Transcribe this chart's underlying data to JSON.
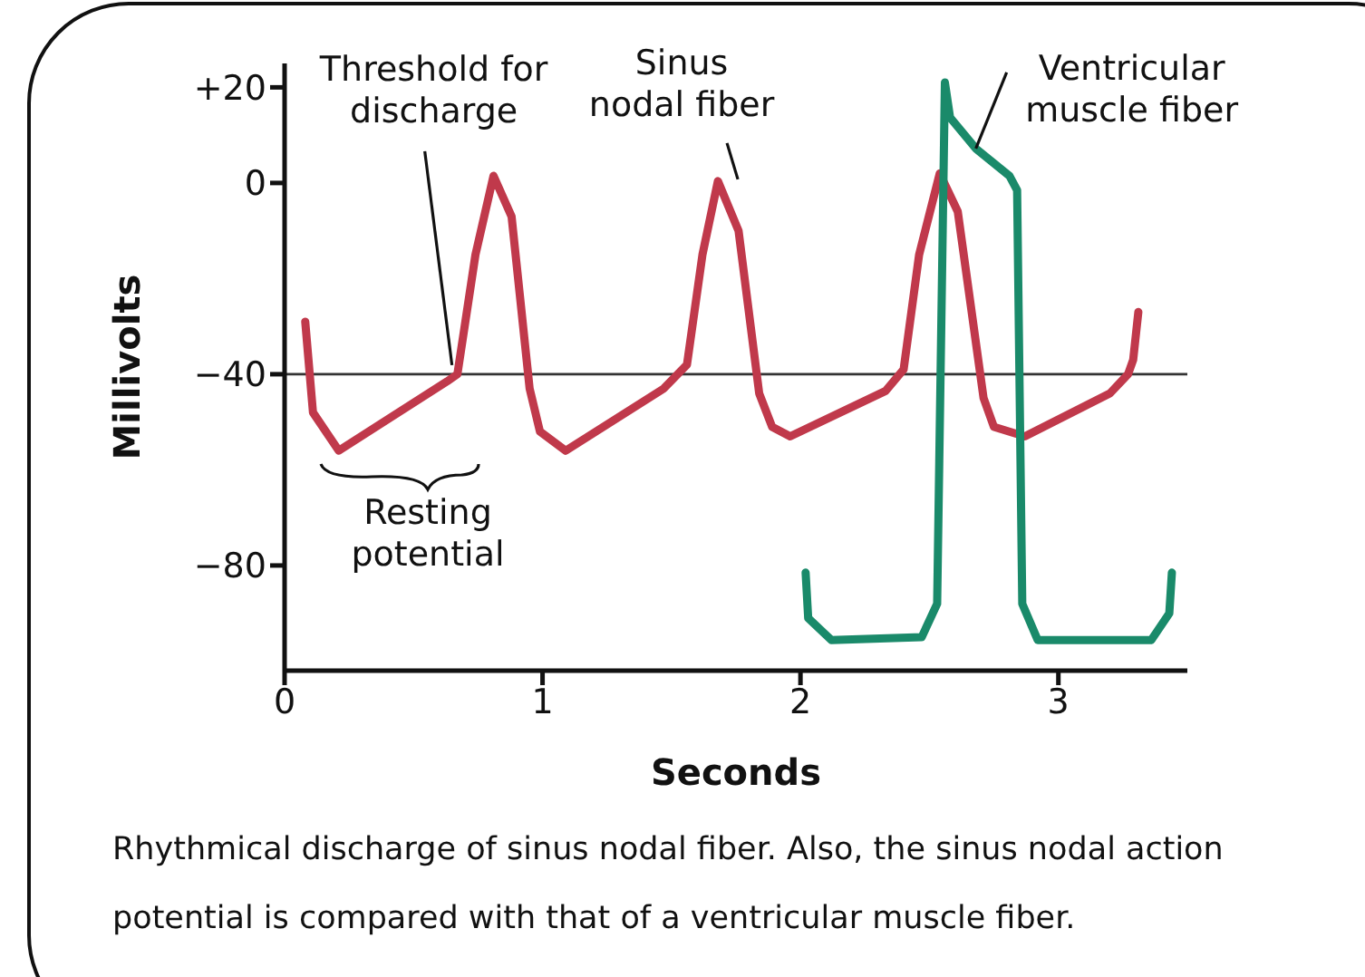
{
  "chart_data": {
    "type": "line",
    "xlabel": "Seconds",
    "ylabel": "Millivolts",
    "xlim": [
      0,
      3.5
    ],
    "ylim": [
      -102,
      25
    ],
    "xticks": [
      0,
      1,
      2,
      3
    ],
    "yticks": [
      {
        "value": 20,
        "label": "+20"
      },
      0,
      {
        "value": -40,
        "label": "−40"
      },
      {
        "value": -80,
        "label": "−80"
      }
    ],
    "grid": false,
    "legend": false,
    "ref_lines": [
      {
        "axis": "y",
        "value": -40,
        "color": "#333333"
      }
    ],
    "series": [
      {
        "color": "#c0394b",
        "x": [
          0.08,
          0.11,
          0.21,
          0.63,
          0.67,
          0.74,
          0.81,
          0.88,
          0.95,
          0.99,
          1.09,
          1.47,
          1.56,
          1.62,
          1.68,
          1.76,
          1.84,
          1.89,
          1.96,
          2.33,
          2.4,
          2.46,
          2.54,
          2.61,
          2.71,
          2.75,
          2.87,
          3.2,
          3.27,
          3.29,
          3.31
        ],
        "values": [
          -29,
          -48,
          -56,
          -41.5,
          -40,
          -15,
          1.5,
          -7,
          -43,
          -52,
          -56,
          -43,
          -38,
          -15,
          0.4,
          -10,
          -44,
          -51,
          -53,
          -43.5,
          -39,
          -15,
          2,
          -6,
          -45,
          -51,
          -53,
          -44,
          -40,
          -37,
          -27
        ]
      },
      {
        "color": "#1a8a6a",
        "x": [
          2.02,
          2.03,
          2.12,
          2.47,
          2.53,
          2.56,
          2.58,
          2.68,
          2.81,
          2.84,
          2.86,
          2.92,
          3.36,
          3.43,
          3.44
        ],
        "values": [
          -81.5,
          -91,
          -95.6,
          -95,
          -88,
          21,
          13.7,
          7.2,
          1.5,
          -1.5,
          -88,
          -95.6,
          -95.6,
          -90,
          -81.5
        ]
      }
    ],
    "annotations": [
      {
        "text": "Threshold for discharge",
        "x": 0.67,
        "y": -40
      },
      {
        "text": "Sinus nodal fiber",
        "x": 1.68,
        "y": 0
      },
      {
        "text": "Ventricular muscle fiber",
        "x": 2.68,
        "y": 7.2
      },
      "Resting potential",
      "Rhythmical discharge of sinus nodal fiber. Also, the sinus nodal action potential is compared with that of a ventricular muscle fiber."
    ]
  }
}
